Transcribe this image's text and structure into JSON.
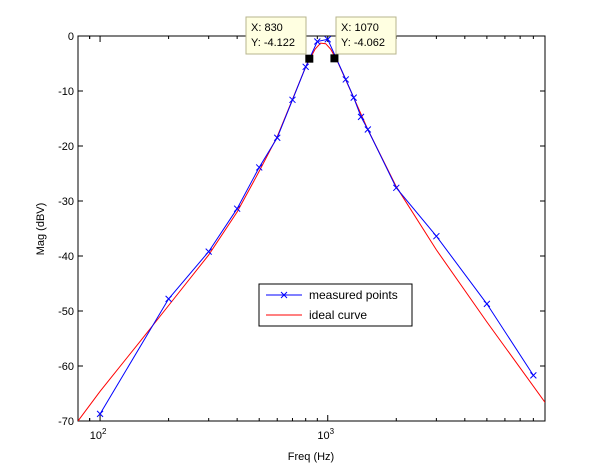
{
  "chart_data": {
    "type": "line",
    "title": "",
    "xlabel": "Freq (Hz)",
    "ylabel": "Mag (dBV)",
    "xscale": "log",
    "xlim": [
      80,
      9000
    ],
    "ylim": [
      -70,
      0
    ],
    "yticks": [
      0,
      -10,
      -20,
      -30,
      -40,
      -50,
      -60,
      -70
    ],
    "xticks": [
      {
        "value": 100,
        "base": "10",
        "exp": "2"
      },
      {
        "value": 1000,
        "base": "10",
        "exp": "3"
      }
    ],
    "grid": false,
    "legend": {
      "position": "center",
      "entries": [
        "measured points",
        "ideal curve"
      ]
    },
    "series": [
      {
        "name": "measured points",
        "color": "#0000ff",
        "marker": "x",
        "x": [
          100,
          200,
          300,
          400,
          500,
          600,
          700,
          800,
          900,
          1000,
          1200,
          1300,
          1400,
          1500,
          2000,
          3000,
          5000,
          8000
        ],
        "y": [
          -68.7,
          -47.8,
          -39.2,
          -31.4,
          -23.9,
          -18.5,
          -11.6,
          -5.6,
          -1.0,
          -0.6,
          -7.9,
          -11.2,
          -14.7,
          -17.0,
          -27.6,
          -36.4,
          -48.7,
          -61.7
        ]
      },
      {
        "name": "ideal curve",
        "color": "#ff0000",
        "marker": "none",
        "x": [
          80,
          100,
          150,
          200,
          300,
          400,
          500,
          600,
          700,
          800,
          880,
          930,
          980,
          1030,
          1100,
          1200,
          1300,
          1500,
          2000,
          3000,
          5000,
          9000
        ],
        "y": [
          -70,
          -64.6,
          -55.5,
          -49.0,
          -39.8,
          -32.0,
          -24.6,
          -18.3,
          -11.5,
          -5.6,
          -2.4,
          -1.3,
          -1.4,
          -2.4,
          -4.5,
          -8.0,
          -11.2,
          -17.0,
          -27.4,
          -38.9,
          -52.0,
          -66.6
        ]
      }
    ],
    "datatips": [
      {
        "x_text": "X: 830",
        "y_text": "Y: -4.122",
        "x": 830,
        "y": -4.122
      },
      {
        "x_text": "X: 1070",
        "y_text": "Y: -4.062",
        "x": 1070,
        "y": -4.062
      }
    ]
  }
}
